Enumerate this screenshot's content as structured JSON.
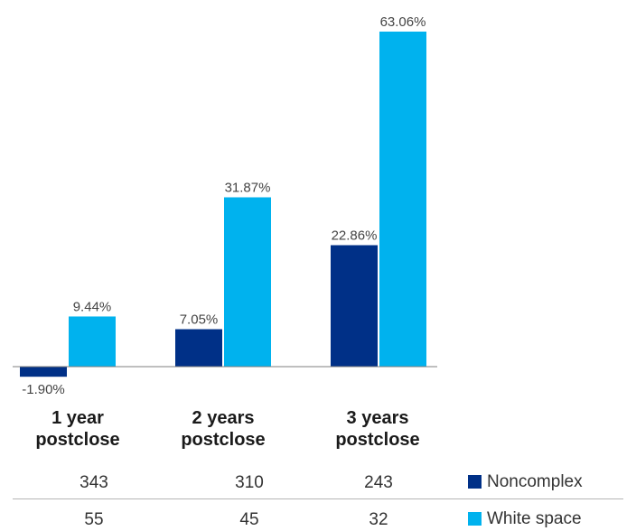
{
  "colors": {
    "noncomplex": "#003087",
    "white_space": "#00B2EE",
    "axis": "#7f7f7f",
    "value_text": "#444444"
  },
  "chart_data": {
    "type": "bar",
    "categories": [
      "1 year\npostclose",
      "2 years\npostclose",
      "3 years\npostclose"
    ],
    "series": [
      {
        "name": "Noncomplex",
        "values": [
          -1.9,
          7.05,
          22.86
        ],
        "labels": [
          "-1.90%",
          "7.05%",
          "22.86%"
        ]
      },
      {
        "name": "White space",
        "values": [
          9.44,
          31.87,
          63.06
        ],
        "labels": [
          "9.44%",
          "31.87%",
          "63.06%"
        ]
      }
    ],
    "ylim": [
      -2.5,
      66
    ],
    "grid": false,
    "legend": "bottom-right",
    "table": [
      {
        "series": "Noncomplex",
        "values": [
          "343",
          "310",
          "243"
        ]
      },
      {
        "series": "White space",
        "values": [
          "55",
          "45",
          "32"
        ]
      }
    ]
  }
}
